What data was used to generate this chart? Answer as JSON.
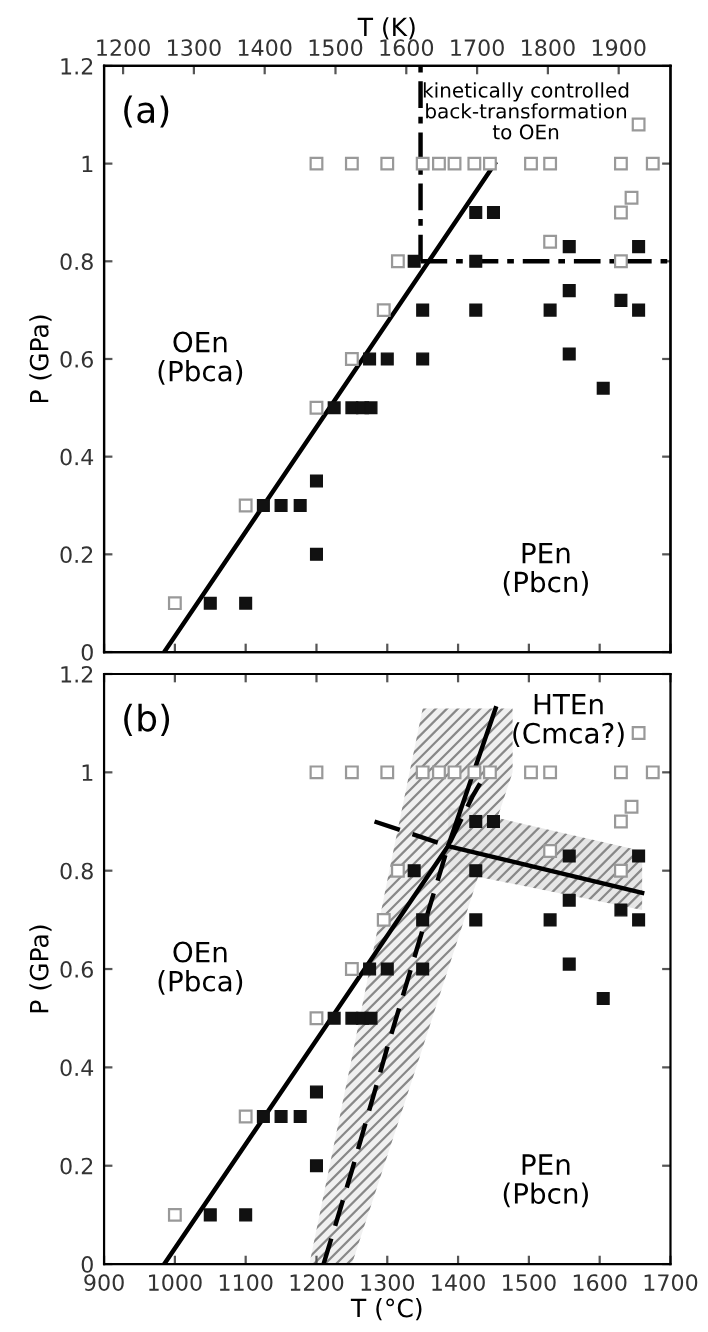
{
  "chart_data": [
    {
      "type": "scatter",
      "xlim": [
        900,
        1700
      ],
      "ylim": [
        0,
        1.2
      ],
      "yticks": [
        0,
        0.2,
        0.4,
        0.6,
        0.8,
        1,
        1.2
      ],
      "xticks": [
        900,
        1000,
        1100,
        1200,
        1300,
        1400,
        1500,
        1600,
        1700
      ],
      "x2lim": [
        1173.15,
        1973.15
      ],
      "x2ticks": [
        1200,
        1300,
        1400,
        1500,
        1600,
        1700,
        1800,
        1900
      ],
      "x2label": "T (K)",
      "ylabel": "P (GPa)",
      "tick_labels": "y",
      "marker": "square",
      "grid": false,
      "legend": false,
      "series": [
        {
          "color": "#999999",
          "x": [
            1000,
            1100,
            1200,
            1250,
            1295,
            1315,
            1200,
            1250,
            1300,
            1350,
            1373,
            1395,
            1423,
            1445,
            1503,
            1530,
            1630,
            1675,
            1530,
            1630,
            1630,
            1645,
            1655
          ],
          "values": [
            0.1,
            0.3,
            0.5,
            0.6,
            0.7,
            0.8,
            1,
            1,
            1,
            1,
            1,
            1,
            1,
            1,
            1,
            1,
            1,
            1,
            0.84,
            0.8,
            0.9,
            0.93,
            1.08
          ]
        },
        {
          "color": "#111111",
          "x": [
            1050,
            1100,
            1125,
            1150,
            1177,
            1200,
            1200,
            1225,
            1250,
            1265,
            1277,
            1275,
            1300,
            1350,
            1350,
            1425,
            1530,
            1655,
            1425,
            1557,
            1605
          ],
          "values": [
            0.1,
            0.1,
            0.3,
            0.3,
            0.3,
            0.35,
            0.2,
            0.5,
            0.5,
            0.5,
            0.5,
            0.6,
            0.6,
            0.6,
            0.7,
            0.7,
            0.7,
            0.7,
            0.8,
            0.61,
            0.54
          ]
        },
        {
          "color": "#111111",
          "x": [
            1338,
            1425,
            1450,
            1557,
            1557,
            1630,
            1655
          ],
          "values": [
            0.8,
            0.9,
            0.9,
            0.83,
            0.74,
            0.72,
            0.83
          ]
        },
        {
          "type": "line",
          "line_style": "solid",
          "marker": "none",
          "color": "#000000",
          "x": [
            985,
            1452
          ],
          "values": [
            0,
            1
          ]
        },
        {
          "type": "line",
          "line_style": "dashdot",
          "marker": "none",
          "color": "#000000",
          "x": [
            1347,
            1347
          ],
          "values": [
            0.8,
            1.2
          ]
        },
        {
          "type": "line",
          "line_style": "dashdot",
          "marker": "none",
          "color": "#000000",
          "x": [
            1347,
            1700
          ],
          "values": [
            0.8,
            0.8
          ]
        }
      ],
      "annotations": [
        "(a)",
        "kinetically controlled\nback-transformation\nto OEn",
        "OEn\n(Pbca)",
        "PEn\n(Pbcn)"
      ]
    },
    {
      "type": "scatter",
      "xlim": [
        900,
        1700
      ],
      "ylim": [
        0,
        1.2
      ],
      "yticks": [
        0,
        0.2,
        0.4,
        0.6,
        0.8,
        1,
        1.2
      ],
      "xticks": [
        900,
        1000,
        1100,
        1200,
        1300,
        1400,
        1500,
        1600,
        1700
      ],
      "xlabel": "T (°C)",
      "ylabel": "P (GPa)",
      "marker": "square",
      "grid": false,
      "legend": false,
      "series": [
        {
          "color": "#999999",
          "x": [
            1000,
            1100,
            1200,
            1250,
            1295,
            1315,
            1200,
            1250,
            1300,
            1350,
            1373,
            1395,
            1423,
            1445,
            1503,
            1530,
            1630,
            1675,
            1530,
            1630,
            1630,
            1645,
            1655
          ],
          "values": [
            0.1,
            0.3,
            0.5,
            0.6,
            0.7,
            0.8,
            1,
            1,
            1,
            1,
            1,
            1,
            1,
            1,
            1,
            1,
            1,
            1,
            0.84,
            0.8,
            0.9,
            0.93,
            1.08
          ]
        },
        {
          "color": "#111111",
          "x": [
            1050,
            1100,
            1125,
            1150,
            1177,
            1200,
            1200,
            1225,
            1250,
            1265,
            1277,
            1275,
            1300,
            1350,
            1350,
            1425,
            1530,
            1655,
            1425,
            1557,
            1605
          ],
          "values": [
            0.1,
            0.1,
            0.3,
            0.3,
            0.3,
            0.35,
            0.2,
            0.5,
            0.5,
            0.5,
            0.5,
            0.6,
            0.6,
            0.6,
            0.7,
            0.7,
            0.7,
            0.7,
            0.8,
            0.61,
            0.54
          ]
        },
        {
          "color": "#111111",
          "x": [
            1338,
            1425,
            1450,
            1557,
            1557,
            1630,
            1655
          ],
          "values": [
            0.8,
            0.9,
            0.9,
            0.83,
            0.74,
            0.72,
            0.83
          ]
        },
        {
          "type": "line",
          "line_style": "dashed",
          "marker": "none",
          "color": "#000000",
          "x": [
            1190,
            1210,
            1250,
            1300,
            1350,
            1386,
            1420,
            1440,
            1477
          ],
          "values": [
            null,
            0,
            0.19,
            0.44,
            0.68,
            0.85,
            0.95,
            1,
            null
          ],
          "lower": [
            0,
            0,
            0,
            0.22,
            0.44,
            0.6,
            0.75,
            0.84,
            1
          ],
          "upper": [
            0,
            0.14,
            0.42,
            0.78,
            1.13,
            1.13,
            1.13,
            1.13,
            1.13
          ]
        },
        {
          "type": "line",
          "line_style": "solid",
          "marker": "none",
          "color": "#000000",
          "x": [
            1386,
            1660
          ],
          "values": [
            0.85,
            0.755
          ],
          "lower": [
            0.8,
            0.72
          ],
          "upper": [
            0.93,
            0.84
          ]
        },
        {
          "type": "line",
          "line_style": "solid",
          "marker": "none",
          "color": "#000000",
          "x": [
            985,
            1386,
            1453
          ],
          "values": [
            0,
            0.85,
            1.13
          ]
        },
        {
          "type": "line",
          "line_style": "dashed",
          "marker": "none",
          "color": "#000000",
          "x": [
            1282,
            1386
          ],
          "values": [
            0.9,
            0.85
          ]
        }
      ],
      "annotations": [
        "(b)",
        "HTEn\n(Cmca?)",
        "OEn\n(Pbca)",
        "PEn\n(Pbcn)"
      ]
    }
  ]
}
